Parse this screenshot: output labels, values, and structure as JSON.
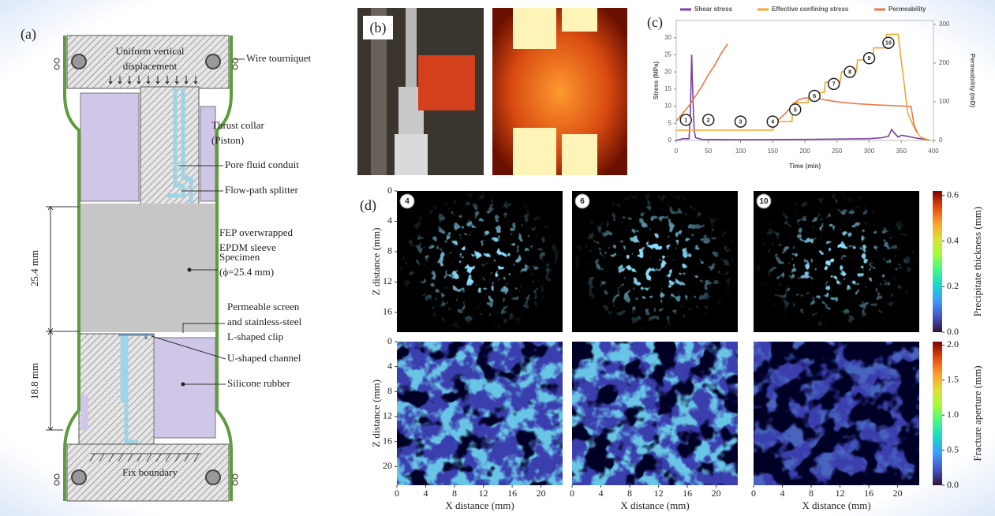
{
  "panel_a": {
    "label": "(a)",
    "top_boundary": [
      "Uniform vertical",
      "displacement"
    ],
    "callouts": [
      {
        "lines": [
          "Wire tourniquet"
        ]
      },
      {
        "lines": [
          "Thrust collar",
          "(Piston)"
        ]
      },
      {
        "lines": [
          "Pore fluid conduit"
        ]
      },
      {
        "lines": [
          "Flow-path splitter"
        ]
      },
      {
        "lines": [
          "FEP overwrapped",
          "EPDM sleeve"
        ]
      },
      {
        "lines": [
          "Specimen",
          "(ϕ=25.4 mm)"
        ]
      },
      {
        "lines": [
          "Permeable screen",
          "and stainless-steel",
          "L-shaped clip"
        ]
      },
      {
        "lines": [
          "U-shaped channel"
        ]
      },
      {
        "lines": [
          "Silicone rubber"
        ]
      }
    ],
    "dimensions": [
      "25.4 mm",
      "18.8 mm"
    ],
    "bottom_boundary": "Fix boundary"
  },
  "panel_b": {
    "label": "(b)"
  },
  "chart_data": [
    {
      "type": "line",
      "panel_label": "(c)",
      "xlabel": "Time (min)",
      "ylabel": "Stress (MPa)",
      "y2label": "Permeability (mD)",
      "xlim": [
        0,
        400
      ],
      "xticks": [
        0,
        50,
        100,
        150,
        200,
        250,
        300,
        350,
        400
      ],
      "ylim": [
        0,
        35
      ],
      "yticks": [
        0,
        5,
        10,
        15,
        20,
        25,
        30
      ],
      "y2lim": [
        0,
        310
      ],
      "y2ticks": [
        0,
        100,
        200,
        300
      ],
      "series": [
        {
          "name": "Shear stress",
          "color": "#7b3fa0",
          "x": [
            0,
            10,
            20,
            22,
            24,
            26,
            28,
            30,
            40,
            100,
            200,
            300,
            320,
            330,
            335,
            340,
            345,
            350,
            360,
            370,
            380,
            390,
            395
          ],
          "values": [
            0,
            0.5,
            0.5,
            8,
            25,
            12,
            3,
            0.8,
            0.3,
            0.2,
            0.3,
            0.5,
            0.8,
            1.2,
            3.2,
            2,
            1,
            1.5,
            1.2,
            0.8,
            0.5,
            0.3,
            0
          ]
        },
        {
          "name": "Effective confining stress",
          "color": "#f0a830",
          "x": [
            0,
            150,
            152,
            180,
            182,
            205,
            207,
            230,
            232,
            255,
            257,
            280,
            282,
            305,
            307,
            325,
            327,
            345,
            360,
            372,
            380,
            395
          ],
          "values": [
            3,
            3,
            5.5,
            5.5,
            11,
            11,
            14,
            14,
            17,
            17,
            20,
            20,
            23.5,
            23.5,
            27,
            27,
            31,
            31,
            8,
            3,
            1,
            0
          ]
        },
        {
          "name": "Permeability",
          "color": "#e8784a",
          "axis": "y2",
          "x": [
            0,
            10,
            20,
            30,
            40,
            50,
            60,
            70,
            80,
            100,
            150,
            160,
            170,
            180,
            190,
            200,
            220,
            250,
            280,
            310,
            340,
            365,
            370,
            375
          ],
          "values": [
            50,
            70,
            90,
            115,
            140,
            170,
            195,
            225,
            250,
            null,
            40,
            55,
            70,
            90,
            105,
            110,
            108,
            100,
            95,
            92,
            90,
            88,
            40,
            20
          ]
        }
      ],
      "stages": [
        {
          "label": "1",
          "x": 15,
          "y": 6
        },
        {
          "label": "2",
          "x": 50,
          "y": 6
        },
        {
          "label": "3",
          "x": 100,
          "y": 5.5
        },
        {
          "label": "4",
          "x": 150,
          "y": 5.5
        },
        {
          "label": "5",
          "x": 185,
          "y": 9
        },
        {
          "label": "6",
          "x": 215,
          "y": 13
        },
        {
          "label": "7",
          "x": 245,
          "y": 16.5
        },
        {
          "label": "8",
          "x": 270,
          "y": 20
        },
        {
          "label": "9",
          "x": 300,
          "y": 24
        },
        {
          "label": "10",
          "x": 330,
          "y": 28.5
        }
      ]
    },
    {
      "type": "heatmap",
      "panel_label": "(d)",
      "panels": [
        "4",
        "6",
        "10"
      ],
      "ylabel": "Z distance (mm)",
      "ylim": [
        0,
        18.6
      ],
      "yticks": [
        0,
        4,
        8,
        12,
        16
      ],
      "colorbar": {
        "label": "Precipitate thickness (mm)",
        "lim": [
          0,
          0.62
        ],
        "ticks": [
          {
            "value": 0,
            "label": "0.0"
          },
          0.2,
          0.4,
          0.6
        ]
      },
      "colormap": [
        "#30123b",
        "#4454c4",
        "#3e9bfe",
        "#18d6cb",
        "#46f884",
        "#a2fc3c",
        "#e1dd37",
        "#fe9b2d",
        "#e4460a",
        "#7a0403"
      ]
    },
    {
      "type": "heatmap",
      "ylabel": "Z distance (mm)",
      "ylim": [
        0,
        23
      ],
      "yticks": [
        0,
        4,
        8,
        12,
        16,
        20
      ],
      "xlabel": "X distance (mm)",
      "xlim": [
        0,
        23
      ],
      "xticks": [
        0,
        4,
        8,
        12,
        16,
        20
      ],
      "colorbar": {
        "label": "Fracture aperture (mm)",
        "lim": [
          0,
          2.05
        ],
        "ticks": [
          {
            "value": 0,
            "label": "0.0"
          },
          0.5,
          {
            "value": 1,
            "label": "1.0"
          },
          1.5,
          {
            "value": 2,
            "label": "2.0"
          }
        ]
      },
      "colormap": [
        "#30123b",
        "#4454c4",
        "#3e9bfe",
        "#18d6cb",
        "#46f884",
        "#a2fc3c",
        "#e1dd37",
        "#fe9b2d",
        "#e4460a",
        "#7a0403"
      ]
    }
  ]
}
